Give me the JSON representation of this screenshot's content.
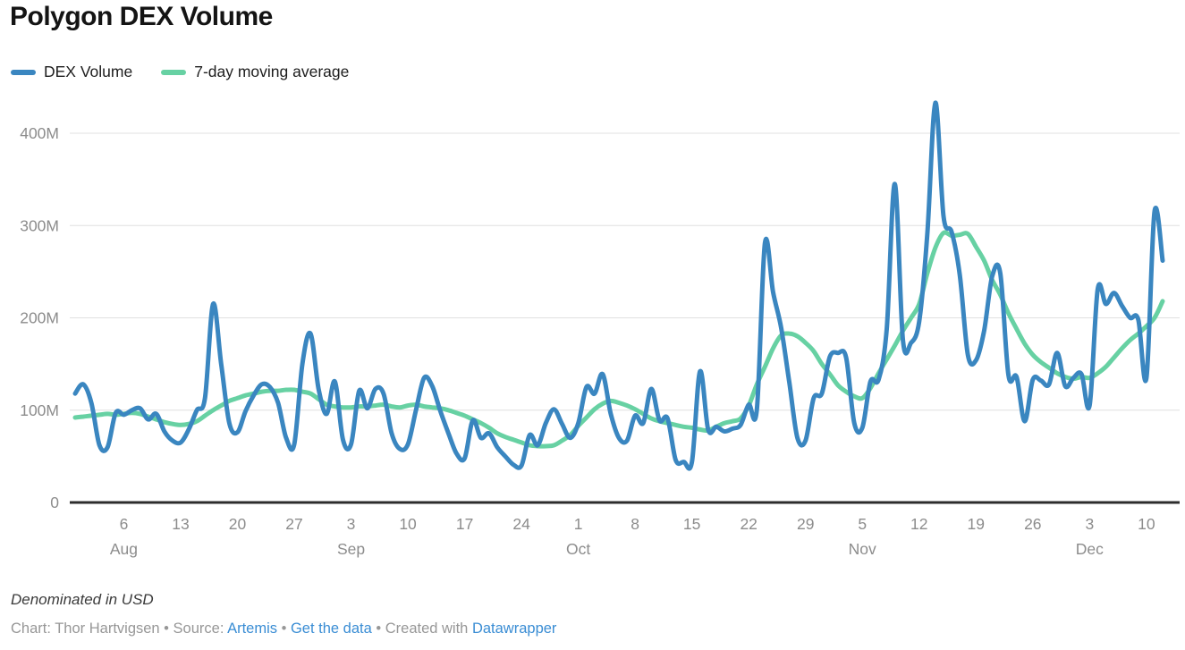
{
  "header": {
    "title": "Polygon DEX Volume"
  },
  "footer": {
    "note": "Denominated in USD",
    "credit_parts": [
      {
        "type": "text",
        "text": "Chart: Thor Hartvigsen • Source: "
      },
      {
        "type": "link",
        "text": "Artemis"
      },
      {
        "type": "text",
        "text": " • "
      },
      {
        "type": "link",
        "text": "Get the data"
      },
      {
        "type": "text",
        "text": " • Created with "
      },
      {
        "type": "link",
        "text": "Datawrapper"
      }
    ]
  },
  "chart_data": {
    "type": "line",
    "title": "Polygon DEX Volume",
    "unit": "USD",
    "grid": "horizontal",
    "legend_position": "top-left",
    "y_axis": {
      "ylim": [
        0,
        440
      ],
      "ticks": [
        {
          "value": 0,
          "label": "0"
        },
        {
          "value": 100,
          "label": "100M"
        },
        {
          "value": 200,
          "label": "200M"
        },
        {
          "value": 300,
          "label": "300M"
        },
        {
          "value": 400,
          "label": "400M"
        }
      ]
    },
    "x_axis": {
      "start": "Jul 31",
      "end": "Dec 12",
      "frequency": "daily",
      "ticks": [
        {
          "index": 6,
          "label": "6",
          "month": "Aug"
        },
        {
          "index": 13,
          "label": "13"
        },
        {
          "index": 20,
          "label": "20"
        },
        {
          "index": 27,
          "label": "27"
        },
        {
          "index": 34,
          "label": "3",
          "month": "Sep"
        },
        {
          "index": 41,
          "label": "10"
        },
        {
          "index": 48,
          "label": "17"
        },
        {
          "index": 55,
          "label": "24"
        },
        {
          "index": 62,
          "label": "1",
          "month": "Oct"
        },
        {
          "index": 69,
          "label": "8"
        },
        {
          "index": 76,
          "label": "15"
        },
        {
          "index": 83,
          "label": "22"
        },
        {
          "index": 90,
          "label": "29"
        },
        {
          "index": 97,
          "label": "5",
          "month": "Nov"
        },
        {
          "index": 104,
          "label": "12"
        },
        {
          "index": 111,
          "label": "19"
        },
        {
          "index": 118,
          "label": "26"
        },
        {
          "index": 125,
          "label": "3",
          "month": "Dec"
        },
        {
          "index": 132,
          "label": "10"
        }
      ]
    },
    "series": [
      {
        "name": "DEX Volume",
        "color": "#3a86c0",
        "values": [
          118,
          128,
          108,
          62,
          60,
          97,
          95,
          100,
          102,
          90,
          96,
          77,
          67,
          65,
          79,
          100,
          113,
          215,
          150,
          86,
          76,
          99,
          116,
          128,
          125,
          108,
          70,
          63,
          150,
          183,
          123,
          96,
          131,
          68,
          63,
          121,
          102,
          123,
          118,
          75,
          58,
          63,
          100,
          135,
          126,
          99,
          75,
          53,
          48,
          89,
          70,
          75,
          60,
          50,
          41,
          40,
          73,
          62,
          86,
          101,
          85,
          70,
          86,
          125,
          118,
          139,
          96,
          70,
          67,
          94,
          86,
          123,
          89,
          91,
          46,
          44,
          44,
          142,
          79,
          82,
          77,
          80,
          84,
          106,
          101,
          281,
          228,
          189,
          130,
          70,
          67,
          113,
          118,
          158,
          162,
          157,
          86,
          81,
          131,
          133,
          188,
          345,
          176,
          173,
          196,
          290,
          433,
          310,
          293,
          247,
          160,
          154,
          186,
          245,
          248,
          138,
          136,
          88,
          133,
          132,
          128,
          162,
          126,
          135,
          139,
          105,
          231,
          215,
          227,
          213,
          200,
          198,
          135,
          315,
          262
        ]
      },
      {
        "name": "7-day moving average",
        "color": "#67d1a3",
        "values": [
          92,
          93,
          94,
          95,
          96,
          95,
          96,
          97,
          96,
          93,
          90,
          87,
          85,
          84,
          85,
          88,
          94,
          100,
          105,
          110,
          113,
          116,
          118,
          120,
          121,
          121,
          122,
          122,
          120,
          118,
          112,
          106,
          104,
          103,
          103,
          104,
          104,
          105,
          106,
          104,
          103,
          105,
          106,
          104,
          103,
          102,
          100,
          97,
          94,
          90,
          86,
          81,
          75,
          71,
          68,
          65,
          62,
          61,
          61,
          62,
          67,
          73,
          83,
          92,
          101,
          107,
          110,
          108,
          105,
          101,
          96,
          91,
          88,
          86,
          84,
          82,
          81,
          79,
          78,
          82,
          86,
          88,
          91,
          105,
          128,
          147,
          167,
          181,
          183,
          180,
          173,
          164,
          150,
          139,
          127,
          120,
          115,
          113,
          124,
          140,
          155,
          170,
          186,
          200,
          215,
          248,
          276,
          292,
          289,
          290,
          291,
          277,
          262,
          241,
          225,
          205,
          188,
          172,
          160,
          152,
          146,
          140,
          136,
          134,
          136,
          135,
          140,
          147,
          157,
          167,
          176,
          183,
          191,
          200,
          218
        ]
      }
    ]
  }
}
